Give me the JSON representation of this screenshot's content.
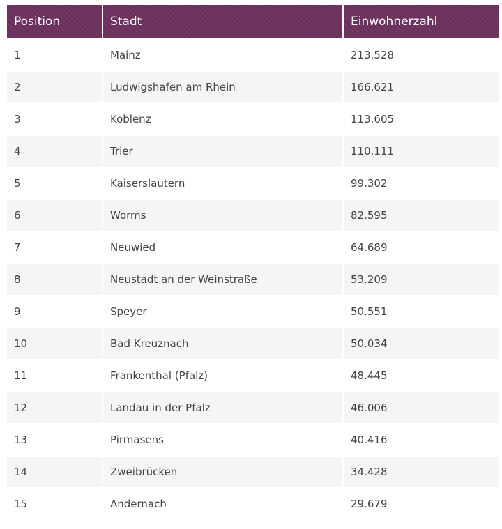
{
  "table": {
    "header": [
      "Position",
      "Stadt",
      "Einwohnerzahl"
    ],
    "rows": [
      [
        1,
        "Mainz",
        "213.528"
      ],
      [
        2,
        "Ludwigshafen am Rhein",
        "166.621"
      ],
      [
        3,
        "Koblenz",
        "113.605"
      ],
      [
        4,
        "Trier",
        "110.111"
      ],
      [
        5,
        "Kaiserslautern",
        "99.302"
      ],
      [
        6,
        "Worms",
        "82.595"
      ],
      [
        7,
        "Neuwied",
        "64.689"
      ],
      [
        8,
        "Neustadt an der Weinstraße",
        "53.209"
      ],
      [
        9,
        "Speyer",
        "50.551"
      ],
      [
        10,
        "Bad Kreuznach",
        "50.034"
      ],
      [
        11,
        "Frankenthal (Pfalz)",
        "48.445"
      ],
      [
        12,
        "Landau in der Pfalz",
        "46.006"
      ],
      [
        13,
        "Pirmasens",
        "40.416"
      ],
      [
        14,
        "Zweibrücken",
        "34.428"
      ],
      [
        15,
        "Andernach",
        "29.679"
      ]
    ]
  }
}
